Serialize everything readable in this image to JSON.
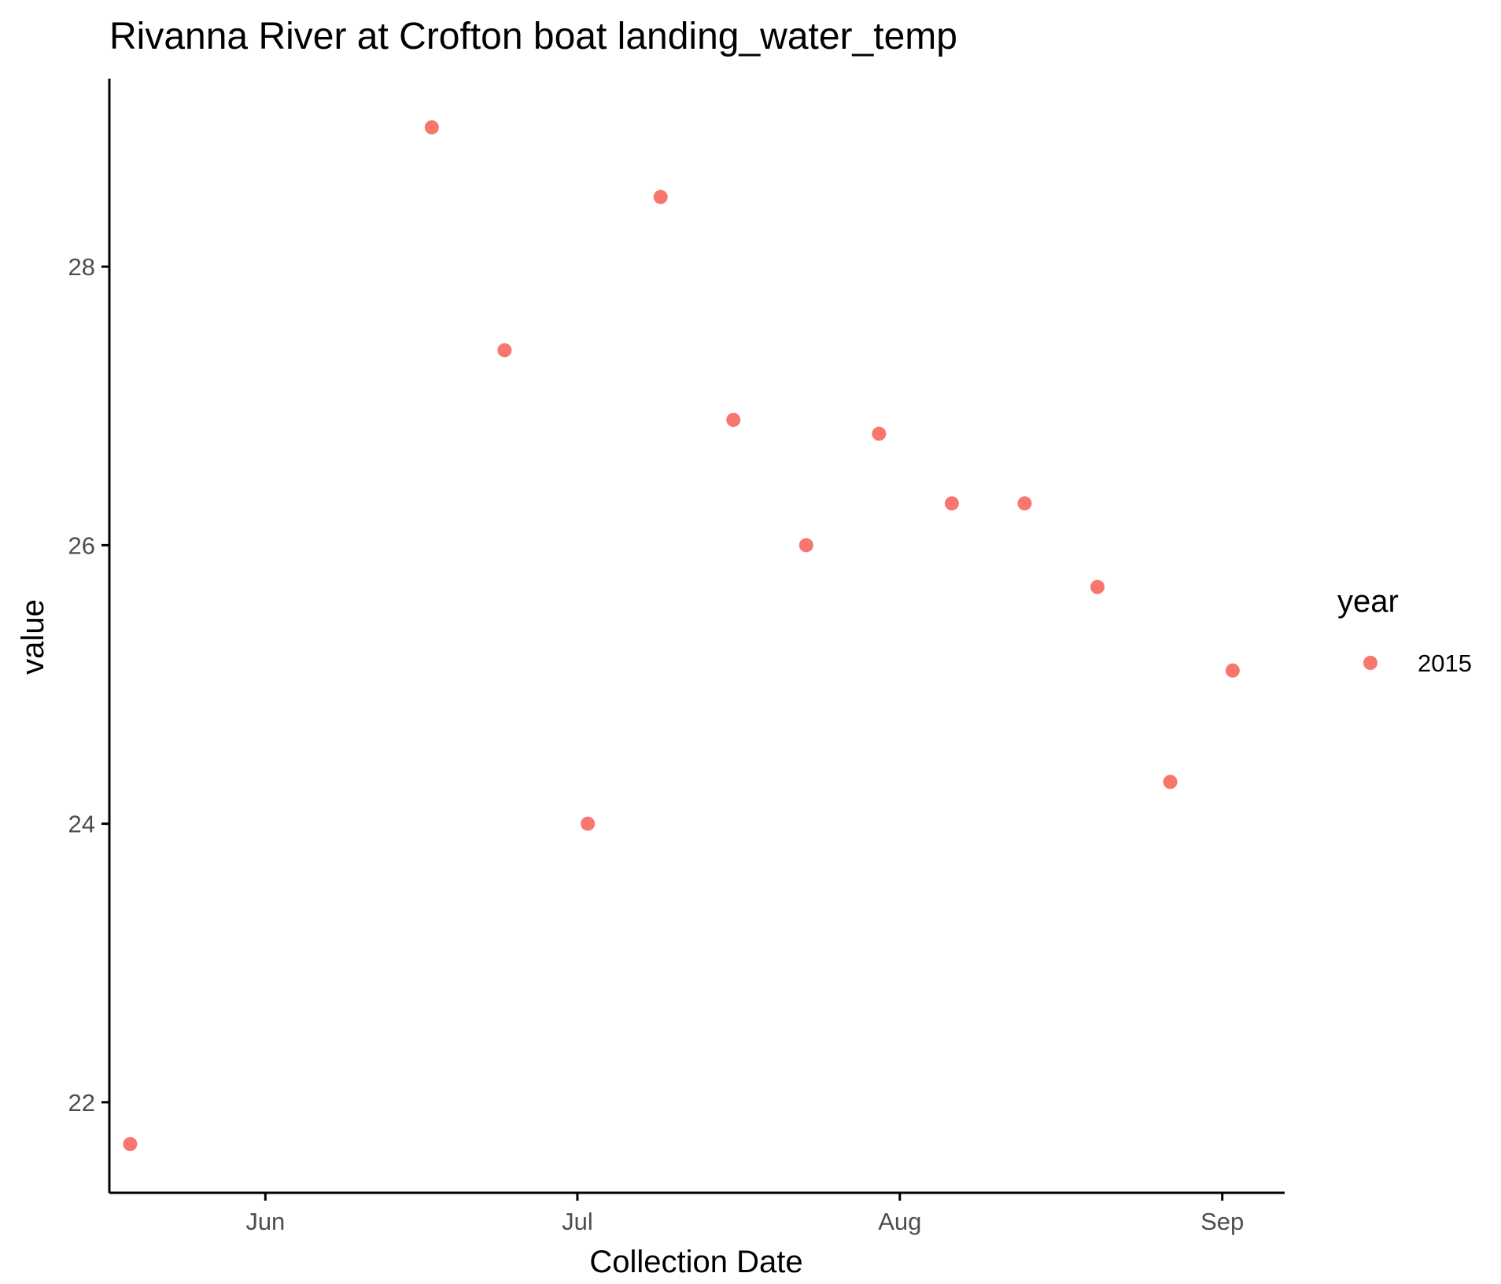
{
  "chart_data": {
    "type": "scatter",
    "title": "Rivanna River at Crofton boat landing_water_temp",
    "xlabel": "Collection Date",
    "ylabel": "value",
    "x_type": "date",
    "xlim": [
      "2015-05-17",
      "2015-09-07"
    ],
    "ylim": [
      21.35,
      29.35
    ],
    "x_ticks": [
      {
        "value": "2015-06-01",
        "label": "Jun"
      },
      {
        "value": "2015-07-01",
        "label": "Jul"
      },
      {
        "value": "2015-08-01",
        "label": "Aug"
      },
      {
        "value": "2015-09-01",
        "label": "Sep"
      }
    ],
    "y_ticks": [
      22,
      24,
      26,
      28
    ],
    "grid": false,
    "legend": {
      "title": "year",
      "position": "right",
      "entries": [
        {
          "label": "2015",
          "color": "#F8766D"
        }
      ]
    },
    "series": [
      {
        "name": "2015",
        "color": "#F8766D",
        "points": [
          {
            "x": "2015-05-19",
            "y": 21.7
          },
          {
            "x": "2015-06-17",
            "y": 29.0
          },
          {
            "x": "2015-06-24",
            "y": 27.4
          },
          {
            "x": "2015-07-02",
            "y": 24.0
          },
          {
            "x": "2015-07-09",
            "y": 28.5
          },
          {
            "x": "2015-07-16",
            "y": 26.9
          },
          {
            "x": "2015-07-23",
            "y": 26.0
          },
          {
            "x": "2015-07-30",
            "y": 26.8
          },
          {
            "x": "2015-08-06",
            "y": 26.3
          },
          {
            "x": "2015-08-13",
            "y": 26.3
          },
          {
            "x": "2015-08-20",
            "y": 25.7
          },
          {
            "x": "2015-08-27",
            "y": 24.3
          },
          {
            "x": "2015-09-02",
            "y": 25.1
          }
        ]
      }
    ]
  }
}
